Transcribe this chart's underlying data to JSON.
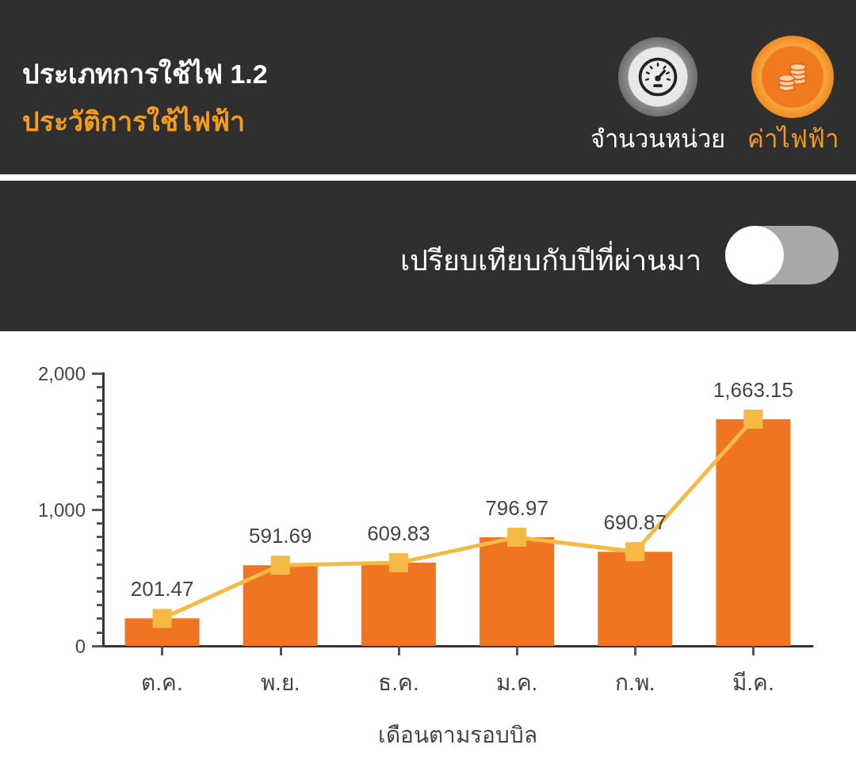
{
  "chart_data": {
    "type": "bar",
    "title": "ประเภทการใช้ไฟ 1.2",
    "subtitle": "ประวัติการใช้ไฟฟ้า",
    "xlabel": "เดือนตามรอบบิล",
    "annotations": [
      "จำนวนหน่วย",
      "ค่าไฟฟ้า",
      "เปรียบเทียบกับปีที่ผ่านมา"
    ],
    "categories": [
      "ต.ค.",
      "พ.ย.",
      "ธ.ค.",
      "ม.ค.",
      "ก.พ.",
      "มี.ค."
    ],
    "series": [
      {
        "color": "#f07522",
        "values": [
          201.47,
          591.69,
          609.83,
          796.97,
          690.87,
          1663.15
        ]
      },
      {
        "type": "line",
        "color": "#f5b945",
        "values": [
          201.47,
          591.69,
          609.83,
          796.97,
          690.87,
          1663.15
        ],
        "value_labels": [
          "201.47",
          "591.69",
          "609.83",
          "796.97",
          "690.87",
          "1,663.15"
        ]
      }
    ],
    "ylim": [
      0,
      2000
    ],
    "yticks": [
      0,
      {
        "value": 100,
        "label": null
      },
      {
        "value": 200,
        "label": null
      },
      {
        "value": 300,
        "label": null
      },
      {
        "value": 400,
        "label": null
      },
      {
        "value": 500,
        "label": null
      },
      {
        "value": 600,
        "label": null
      },
      {
        "value": 700,
        "label": null
      },
      {
        "value": 800,
        "label": null
      },
      {
        "value": 900,
        "label": null
      },
      {
        "value": 1000,
        "label": "1,000"
      },
      {
        "value": 1100,
        "label": null
      },
      {
        "value": 1200,
        "label": null
      },
      {
        "value": 1300,
        "label": null
      },
      {
        "value": 1400,
        "label": null
      },
      {
        "value": 1500,
        "label": null
      },
      {
        "value": 1600,
        "label": null
      },
      {
        "value": 1700,
        "label": null
      },
      {
        "value": 1800,
        "label": null
      },
      {
        "value": 1900,
        "label": null
      },
      {
        "value": 2000,
        "label": "2,000"
      }
    ],
    "marker": "square",
    "grid": false
  }
}
